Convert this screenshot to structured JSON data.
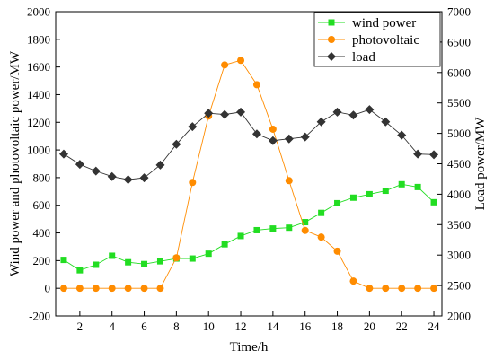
{
  "chart_data": {
    "type": "line",
    "xlabel": "Time/h",
    "ylabel_left": "Wind power and photovoltaic power/MW",
    "ylabel_right": "Load power/MW",
    "x": [
      1,
      2,
      3,
      4,
      5,
      6,
      7,
      8,
      9,
      10,
      11,
      12,
      13,
      14,
      15,
      16,
      17,
      18,
      19,
      20,
      21,
      22,
      23,
      24
    ],
    "xticks": [
      2,
      4,
      6,
      8,
      10,
      12,
      14,
      16,
      18,
      20,
      22,
      24
    ],
    "xlim": [
      0.5,
      24.5
    ],
    "ylim_left": [
      -200,
      2000
    ],
    "yticks_left": [
      -200,
      0,
      200,
      400,
      600,
      800,
      1000,
      1200,
      1400,
      1600,
      1800,
      2000
    ],
    "ylim_right": [
      2000,
      7000
    ],
    "yticks_right": [
      2000,
      2500,
      3000,
      3500,
      4000,
      4500,
      5000,
      5500,
      6000,
      6500,
      7000
    ],
    "grid": false,
    "legend_position": "top-right",
    "series": [
      {
        "name": "wind power",
        "axis": "left",
        "color": "#22dd22",
        "marker": "square",
        "values": [
          205,
          130,
          170,
          235,
          188,
          175,
          195,
          215,
          215,
          250,
          318,
          378,
          420,
          432,
          438,
          478,
          545,
          615,
          655,
          680,
          705,
          752,
          732,
          622
        ]
      },
      {
        "name": "photovoltaic",
        "axis": "left",
        "color": "#ff8c00",
        "marker": "circle",
        "values": [
          0,
          0,
          0,
          0,
          0,
          0,
          0,
          220,
          765,
          1245,
          1615,
          1648,
          1472,
          1150,
          778,
          418,
          370,
          268,
          52,
          0,
          0,
          0,
          0,
          0
        ]
      },
      {
        "name": "load",
        "axis": "right",
        "color": "#333333",
        "marker": "diamond",
        "values": [
          4660,
          4490,
          4380,
          4290,
          4240,
          4270,
          4480,
          4820,
          5110,
          5330,
          5310,
          5350,
          4990,
          4880,
          4910,
          4940,
          5190,
          5350,
          5300,
          5390,
          5190,
          4970,
          4660,
          4650
        ]
      }
    ]
  }
}
